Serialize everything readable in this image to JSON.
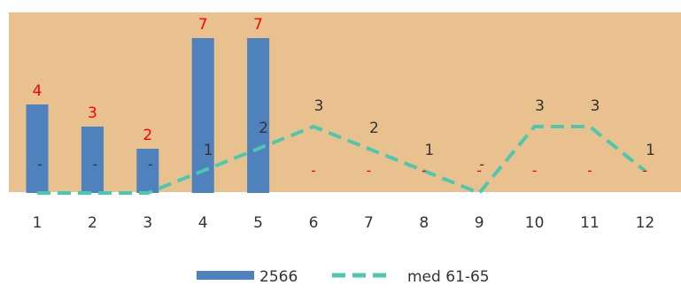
{
  "chart_data": {
    "type": "bar",
    "categories": [
      "1",
      "2",
      "3",
      "4",
      "5",
      "6",
      "7",
      "8",
      "9",
      "10",
      "11",
      "12"
    ],
    "ylim": [
      0,
      7
    ],
    "grid": false,
    "legend_position": "bottom",
    "colors": {
      "plot_background": "#e8c18f",
      "bar": "#4f81bd",
      "line": "#4dc7ae",
      "bar_label": "#ff0000",
      "line_label": "#333333"
    },
    "series": [
      {
        "name": "2566",
        "type": "bar",
        "values": [
          4,
          3,
          2,
          7,
          7,
          null,
          null,
          null,
          null,
          null,
          null,
          null
        ],
        "labels": [
          "4",
          "3",
          "2",
          "7",
          "7",
          "-",
          "-",
          "-",
          "-",
          "-",
          "-",
          "-"
        ]
      },
      {
        "name": "med 61-65",
        "type": "line",
        "style": "dashed",
        "values": [
          0,
          0,
          0,
          1,
          2,
          3,
          2,
          1,
          0,
          3,
          3,
          1
        ],
        "labels": [
          "-",
          "-",
          "-",
          "1",
          "2",
          "3",
          "2",
          "1",
          "-",
          "3",
          "3",
          "1"
        ]
      }
    ]
  }
}
